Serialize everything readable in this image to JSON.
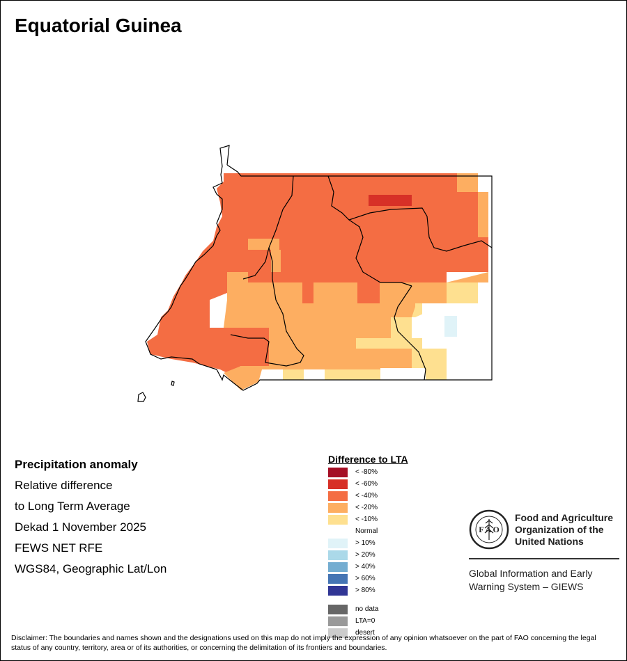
{
  "map": {
    "title": "Equatorial Guinea",
    "info_lines": [
      "Precipitation anomaly",
      "Relative difference",
      "to Long Term Average",
      "Dekad 1 November 2025",
      "FEWS NET RFE",
      "WGS84, Geographic Lat/Lon"
    ]
  },
  "legend": {
    "title": "Difference to LTA",
    "items": [
      {
        "label": "< -80%",
        "color": "#a50f25"
      },
      {
        "label": "< -60%",
        "color": "#d73027"
      },
      {
        "label": "< -40%",
        "color": "#f46d43"
      },
      {
        "label": "< -20%",
        "color": "#fdae61"
      },
      {
        "label": "< -10%",
        "color": "#fee090"
      },
      {
        "label": "Normal",
        "color": "#ffffff"
      },
      {
        "label": "> 10%",
        "color": "#e0f3f8"
      },
      {
        "label": "> 20%",
        "color": "#abd9e9"
      },
      {
        "label": "> 40%",
        "color": "#74add1"
      },
      {
        "label": "> 60%",
        "color": "#4575b4"
      },
      {
        "label": "> 80%",
        "color": "#313695"
      }
    ],
    "extra": [
      {
        "label": "no data",
        "color": "#666666"
      },
      {
        "label": "LTA=0",
        "color": "#999999"
      },
      {
        "label": "desert",
        "color": "#cccccc"
      }
    ]
  },
  "logo": {
    "org_name_lines": [
      "Food and Agriculture",
      "Organization of the",
      "United Nations"
    ],
    "giews_lines": [
      "Global Information and Early",
      "Warning System – GIEWS"
    ],
    "seal_letters": "FAO FIAT PANIS"
  },
  "disclaimer": "Disclaimer: The boundaries and names shown and the designations used on this map do not imply the expression of any opinion whatsoever on the part of FAO concerning the legal status of any country, territory, area or of its authorities, or concerning the delimitation of its frontiers and boundaries."
}
